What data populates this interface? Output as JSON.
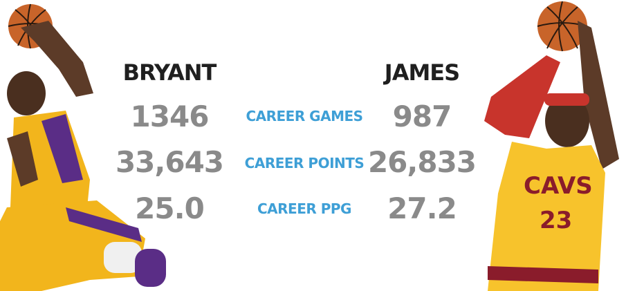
{
  "players": {
    "left": {
      "name": "BRYANT",
      "jersey_colors": {
        "primary": "#f2b51c",
        "secondary": "#5a2d86"
      }
    },
    "right": {
      "name": "JAMES",
      "jersey_lettering": "CAVS",
      "jersey_number": "23",
      "jersey_colors": {
        "primary": "#f7c32c",
        "secondary": "#8a1c2b"
      }
    }
  },
  "stats": [
    {
      "label": "CAREER GAMES",
      "left": "1346",
      "right": "987"
    },
    {
      "label": "CAREER POINTS",
      "left": "33,643",
      "right": "26,833"
    },
    {
      "label": "CAREER PPG",
      "left": "25.0",
      "right": "27.2"
    }
  ],
  "colors": {
    "name": "#1f1f1f",
    "stat_value": "#8a8a8a",
    "stat_label": "#3e9fd6"
  }
}
